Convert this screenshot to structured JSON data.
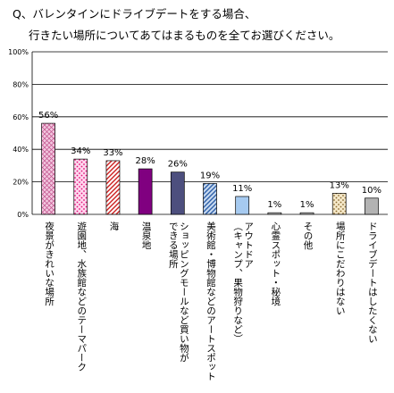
{
  "chart_data": {
    "type": "bar",
    "title_lines": [
      "Q、バレンタインにドライブデートをする場合、",
      "行きたい場所についてあてはまるものを全てお選びください。"
    ],
    "categories": [
      [
        "夜景がきれいな場所"
      ],
      [
        "遊園地、水族館などのテーマパーク"
      ],
      [
        "海"
      ],
      [
        "温泉地"
      ],
      [
        "ショッピングモールなど買い物が",
        "できる場所"
      ],
      [
        "美術館・博物館などのアートスポット"
      ],
      [
        "アウトドア",
        "（キャンプ、果物狩りなど）"
      ],
      [
        "心霊スポット・秘境"
      ],
      [
        "その他"
      ],
      [
        "場所にこだわりはない"
      ],
      [
        "ドライブデートはしたくない"
      ]
    ],
    "values": [
      56,
      34,
      33,
      28,
      26,
      19,
      11,
      1,
      1,
      13,
      10
    ],
    "value_labels": [
      "56%",
      "34%",
      "33%",
      "28%",
      "26%",
      "19%",
      "11%",
      "1%",
      "1%",
      "13%",
      "10%"
    ],
    "y_ticks": [
      "0%",
      "20%",
      "40%",
      "60%",
      "80%",
      "100%"
    ],
    "ylim": [
      0,
      100
    ],
    "grid": true,
    "bar_styles": [
      {
        "pattern": "diagcross",
        "fg": "#c0508a",
        "bg": "#f3c8e0"
      },
      {
        "pattern": "dots",
        "fg": "#e2147a",
        "bg": "#ffd6ee"
      },
      {
        "pattern": "diag",
        "fg": "#cc1e1e",
        "bg": "#ffffff"
      },
      {
        "pattern": "solid",
        "fg": "#800080",
        "bg": "#800080"
      },
      {
        "pattern": "solid",
        "fg": "#4d4f7e",
        "bg": "#4d4f7e"
      },
      {
        "pattern": "diag",
        "fg": "#2e5fa8",
        "bg": "#c8daf0"
      },
      {
        "pattern": "solid",
        "fg": "#a6caf0",
        "bg": "#a6caf0"
      },
      {
        "pattern": "solid",
        "fg": "#c0c0c0",
        "bg": "#c0c0c0"
      },
      {
        "pattern": "solid",
        "fg": "#c0c0c0",
        "bg": "#c0c0c0"
      },
      {
        "pattern": "dots",
        "fg": "#8a6a30",
        "bg": "#f5e8c8"
      },
      {
        "pattern": "solid",
        "fg": "#b3b3b3",
        "bg": "#b3b3b3"
      }
    ]
  }
}
